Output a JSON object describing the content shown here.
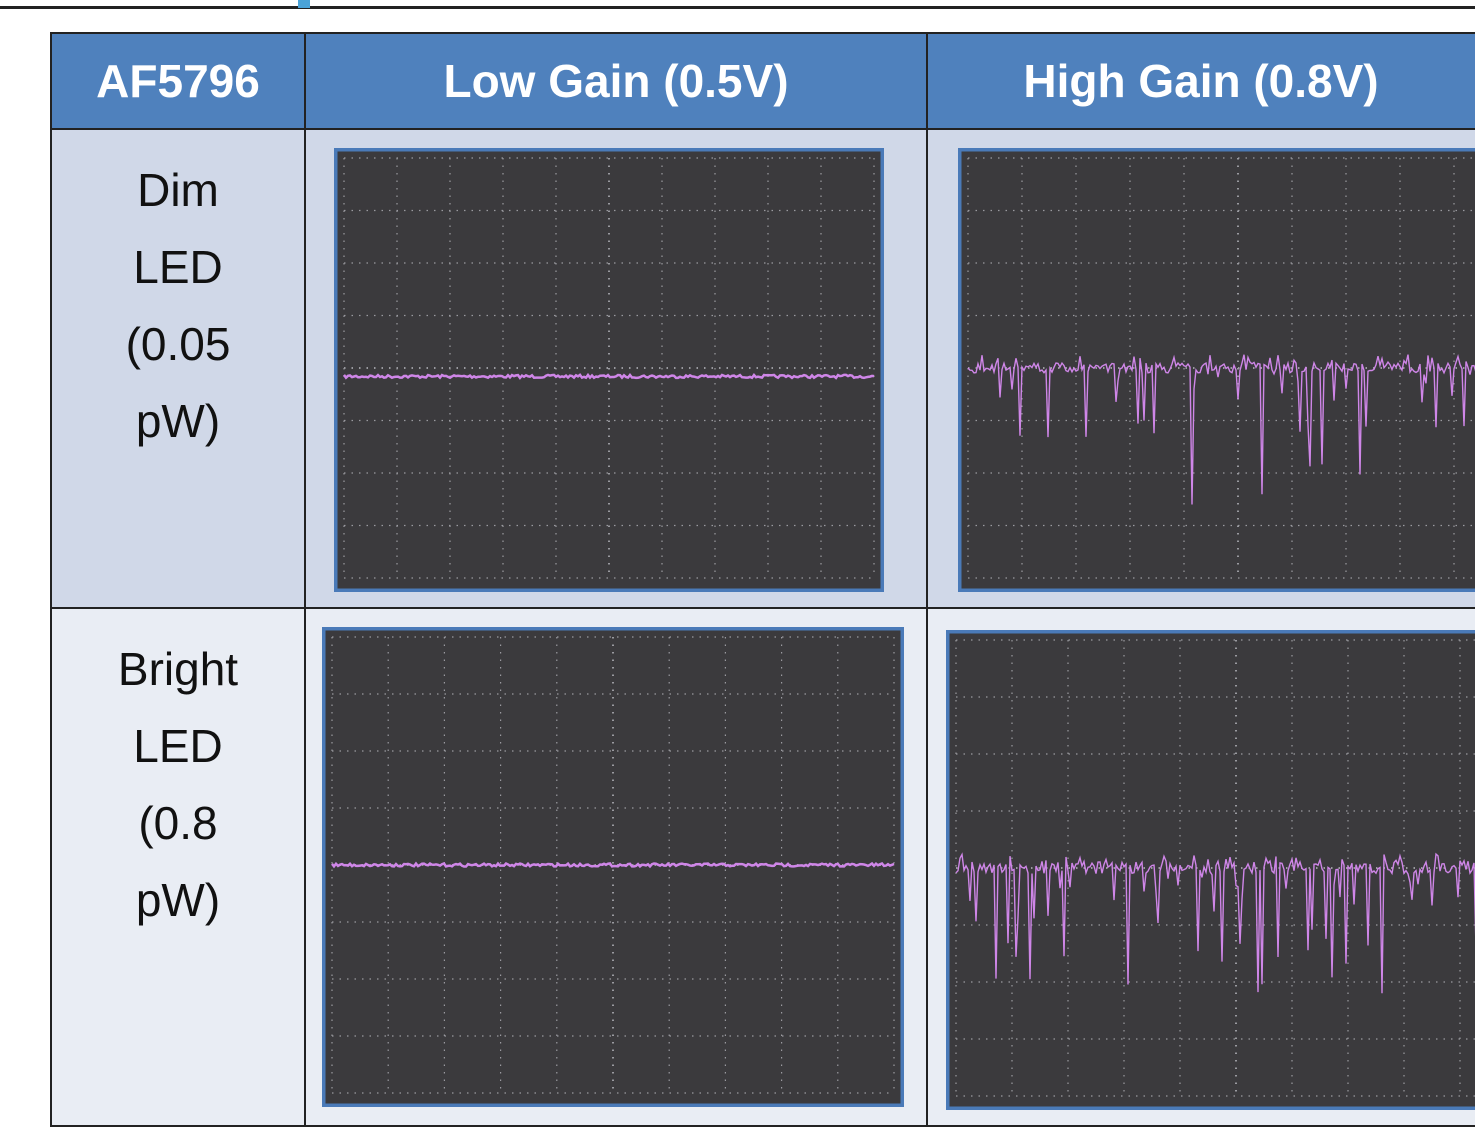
{
  "table": {
    "header": [
      "AF5796",
      "Low Gain (0.5V)",
      "High Gain (0.8V)"
    ],
    "rows": [
      [
        "Dim LED (0.05 pW)"
      ],
      [
        "Bright LED (0.8 pW)"
      ]
    ]
  }
}
